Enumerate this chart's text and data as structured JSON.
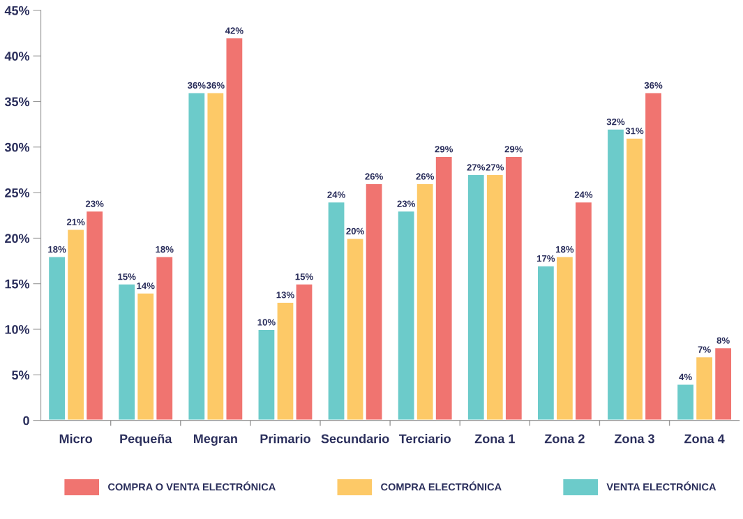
{
  "chart_data": {
    "type": "bar",
    "categories": [
      "Micro",
      "Pequeña",
      "Megran",
      "Primario",
      "Secundario",
      "Terciario",
      "Zona 1",
      "Zona 2",
      "Zona 3",
      "Zona 4"
    ],
    "series": [
      {
        "name": "VENTA ELECTRÓNICA",
        "color": "#6ccbca",
        "values": [
          18,
          15,
          36,
          10,
          24,
          23,
          27,
          17,
          32,
          4
        ],
        "value_labels": [
          "18%",
          "15%",
          "36%",
          "10%",
          "24%",
          "23%",
          "27%",
          "17%",
          "32%",
          "4%"
        ]
      },
      {
        "name": "COMPRA ELECTRÓNICA",
        "color": "#fdc967",
        "values": [
          21,
          14,
          36,
          13,
          20,
          26,
          27,
          18,
          31,
          7
        ],
        "value_labels": [
          "21%",
          "14%",
          "36%",
          "13%",
          "20%",
          "26%",
          "27%",
          "18%",
          "31%",
          "7%"
        ]
      },
      {
        "name": "COMPRA O VENTA ELECTRÓNICA",
        "color": "#f07470",
        "values": [
          23,
          18,
          42,
          15,
          26,
          29,
          29,
          24,
          36,
          8
        ],
        "value_labels": [
          "23%",
          "18%",
          "42%",
          "15%",
          "26%",
          "29%",
          "29%",
          "24%",
          "36%",
          "8%"
        ]
      }
    ],
    "ylim": [
      0,
      45
    ],
    "yticks": [
      0,
      {
        "value": 5,
        "label": "5%"
      },
      {
        "value": 10,
        "label": "10%"
      },
      {
        "value": 15,
        "label": "15%"
      },
      {
        "value": 20,
        "label": "20%"
      },
      {
        "value": 25,
        "label": "25%"
      },
      {
        "value": 30,
        "label": "30%"
      },
      {
        "value": 35,
        "label": "35%"
      },
      {
        "value": 40,
        "label": "40%"
      },
      {
        "value": 45,
        "label": "45%"
      }
    ],
    "legend": "bottom",
    "grid": false
  }
}
